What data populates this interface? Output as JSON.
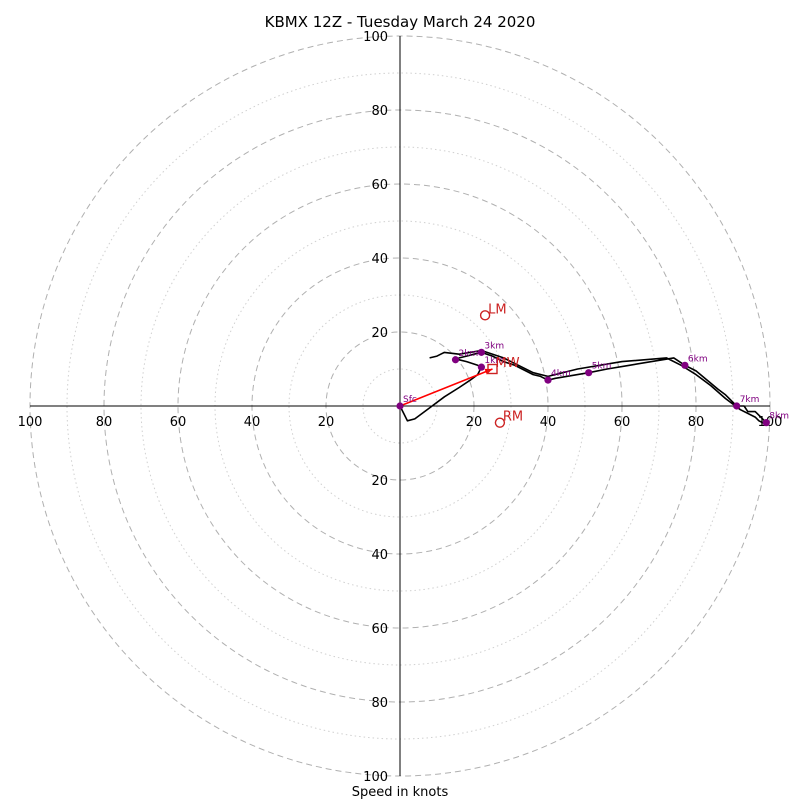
{
  "chart_data": {
    "type": "hodograph",
    "title": "KBMX 12Z - Tuesday March 24 2020",
    "xlabel": "Speed in knots",
    "ring_max": 100,
    "ring_step": 20,
    "ticks": {
      "x_left": [
        "100",
        "80",
        "60",
        "40",
        "20"
      ],
      "x_right": [
        "20",
        "40",
        "60",
        "80",
        "100"
      ],
      "y_up": [
        "20",
        "40",
        "60",
        "80",
        "100"
      ],
      "y_down": [
        "20",
        "40",
        "60",
        "80",
        "100"
      ]
    },
    "profile": [
      [
        0,
        0
      ],
      [
        1,
        -2
      ],
      [
        2,
        -4
      ],
      [
        4,
        -3.5
      ],
      [
        8,
        -0.5
      ],
      [
        12,
        2.5
      ],
      [
        16,
        5
      ],
      [
        19,
        7
      ],
      [
        21,
        8.5
      ],
      [
        22,
        10.5
      ],
      [
        21,
        11
      ],
      [
        18,
        12
      ],
      [
        16,
        12.5
      ],
      [
        15,
        12.5
      ],
      [
        16,
        13
      ],
      [
        18,
        13.5
      ],
      [
        20,
        14
      ],
      [
        22,
        14.5
      ],
      [
        25,
        13.5
      ],
      [
        28,
        12
      ],
      [
        31,
        11
      ],
      [
        34,
        9.5
      ],
      [
        36,
        8.5
      ],
      [
        38,
        8
      ],
      [
        39,
        7.5
      ],
      [
        40,
        7
      ],
      [
        42,
        7.5
      ],
      [
        45,
        8
      ],
      [
        48,
        8.5
      ],
      [
        51,
        9
      ],
      [
        56,
        10
      ],
      [
        62,
        11
      ],
      [
        68,
        12
      ],
      [
        74,
        13
      ],
      [
        77,
        11
      ],
      [
        80,
        9.5
      ],
      [
        83,
        7
      ],
      [
        86,
        4.5
      ],
      [
        88,
        3
      ],
      [
        90,
        1
      ],
      [
        91,
        0
      ],
      [
        93,
        0
      ],
      [
        94,
        -1.5
      ],
      [
        96,
        -1.5
      ],
      [
        98,
        -3.5
      ],
      [
        99,
        -4.5
      ],
      [
        98,
        -4.5
      ],
      [
        97,
        -4
      ],
      [
        96,
        -3
      ],
      [
        92,
        -1
      ],
      [
        88,
        2
      ],
      [
        84,
        5.5
      ],
      [
        80,
        8.5
      ],
      [
        76,
        11
      ],
      [
        72,
        13
      ],
      [
        60,
        12
      ],
      [
        48,
        10
      ],
      [
        40,
        8
      ],
      [
        36,
        9
      ],
      [
        32,
        11
      ],
      [
        28,
        13
      ],
      [
        22,
        15
      ],
      [
        16,
        14
      ],
      [
        12,
        14.5
      ],
      [
        11,
        14
      ],
      [
        10,
        13.5
      ],
      [
        8,
        13
      ]
    ],
    "height_points": [
      {
        "label": "Sfc",
        "u": 0,
        "v": 0
      },
      {
        "label": "1km",
        "u": 22,
        "v": 10.5
      },
      {
        "label": "2km",
        "u": 15,
        "v": 12.5
      },
      {
        "label": "3km",
        "u": 22,
        "v": 14.5
      },
      {
        "label": "4km",
        "u": 40,
        "v": 7
      },
      {
        "label": "5km",
        "u": 51,
        "v": 9
      },
      {
        "label": "6km",
        "u": 77,
        "v": 11
      },
      {
        "label": "7km",
        "u": 91,
        "v": 0
      },
      {
        "label": "8km",
        "u": 99,
        "v": -4.5
      }
    ],
    "markers": [
      {
        "label": "LM",
        "u": 23,
        "v": 24.5,
        "shape": "circle"
      },
      {
        "label": "RM",
        "u": 27,
        "v": -4.5,
        "shape": "circle"
      },
      {
        "label": "MW",
        "u": 25,
        "v": 10,
        "shape": "square"
      }
    ],
    "shear_vector": {
      "from": [
        0,
        0
      ],
      "to": [
        25,
        10
      ]
    },
    "colors": {
      "profile": "#000000",
      "height_points": "#800080",
      "markers": "#cc2222",
      "shear_vector": "#ff0000",
      "rings": "#b0b0b0",
      "axes": "#000000"
    }
  }
}
